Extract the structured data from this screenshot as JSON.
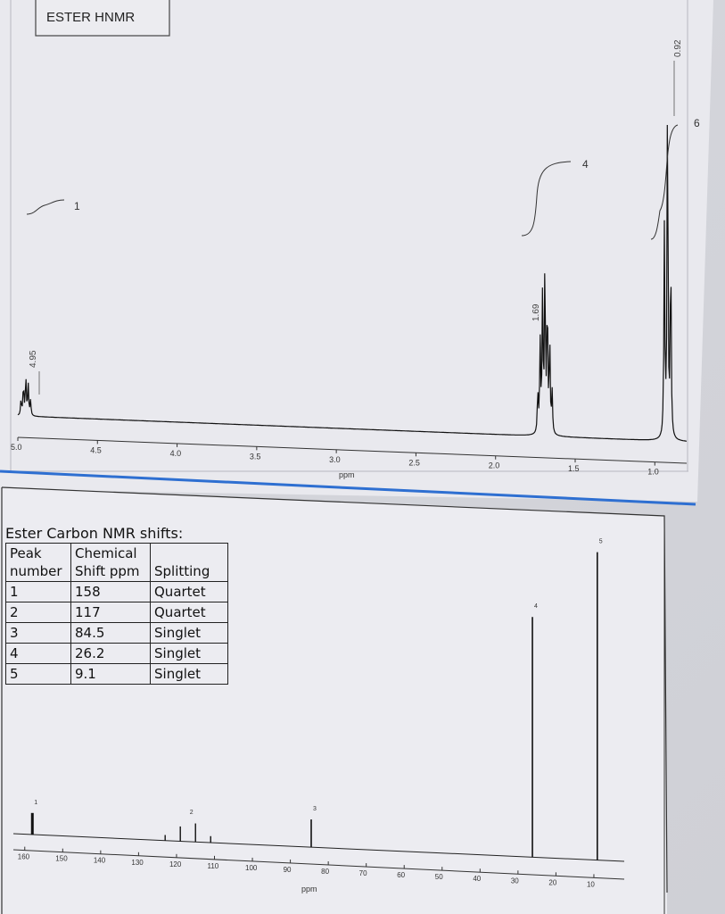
{
  "proton_panel": {
    "title": "ESTER HNMR",
    "xlabel": "ppm",
    "ticks": [
      "5.0",
      "4.5",
      "4.0",
      "3.5",
      "3.0",
      "2.5",
      "2.0",
      "1.5",
      "1.0"
    ],
    "peak_labels": [
      "4.95",
      "1.69",
      "0.92"
    ],
    "integral_labels": [
      "1",
      "4",
      "6"
    ]
  },
  "carbon_panel": {
    "table_title": "Ester Carbon NMR shifts:",
    "headers": {
      "peak": "Peak number",
      "shift": "Chemical Shift ppm",
      "splitting": "Splitting"
    },
    "rows": [
      {
        "peak": "1",
        "shift": "158",
        "splitting": "Quartet"
      },
      {
        "peak": "2",
        "shift": "117",
        "splitting": "Quartet"
      },
      {
        "peak": "3",
        "shift": "84.5",
        "splitting": "Singlet"
      },
      {
        "peak": "4",
        "shift": "26.2",
        "splitting": "Singlet"
      },
      {
        "peak": "5",
        "shift": "9.1",
        "splitting": "Singlet"
      }
    ],
    "xlabel": "ppm",
    "ticks": [
      "160",
      "150",
      "140",
      "130",
      "120",
      "110",
      "100",
      "90",
      "80",
      "70",
      "60",
      "50",
      "40",
      "30",
      "20",
      "10"
    ],
    "peak_labels": [
      "1",
      "2",
      "3",
      "4",
      "5"
    ]
  },
  "chart_data": [
    {
      "type": "line",
      "title": "ESTER HNMR",
      "xlabel": "ppm",
      "ylabel": "",
      "xlim": [
        5.0,
        0.8
      ],
      "x_reversed": true,
      "x_ticks": [
        5.0,
        4.5,
        4.0,
        3.5,
        3.0,
        2.5,
        2.0,
        1.5,
        1.0
      ],
      "grid": false,
      "peaks": [
        {
          "shift": 4.95,
          "label": "4.95",
          "integral": "1",
          "relative_height": 0.11
        },
        {
          "shift": 1.69,
          "label": "1.69",
          "integral": "4",
          "relative_height": 0.48
        },
        {
          "shift": 0.92,
          "label": "0.92",
          "integral": "6",
          "relative_height": 1.0
        }
      ]
    },
    {
      "type": "bar",
      "title": "",
      "xlabel": "ppm",
      "ylabel": "",
      "xlim": [
        163,
        2
      ],
      "x_reversed": true,
      "x_ticks": [
        160,
        150,
        140,
        130,
        120,
        110,
        100,
        90,
        80,
        70,
        60,
        50,
        40,
        30,
        20,
        10
      ],
      "grid": false,
      "peaks": [
        {
          "shift": 158,
          "label": "1",
          "relative_height": 0.07
        },
        {
          "shift": 117,
          "label": "2",
          "relative_height": 0.06
        },
        {
          "shift": 84.5,
          "label": "3",
          "relative_height": 0.09
        },
        {
          "shift": 26.2,
          "label": "4",
          "relative_height": 0.78
        },
        {
          "shift": 9.1,
          "label": "5",
          "relative_height": 1.0
        }
      ]
    }
  ]
}
